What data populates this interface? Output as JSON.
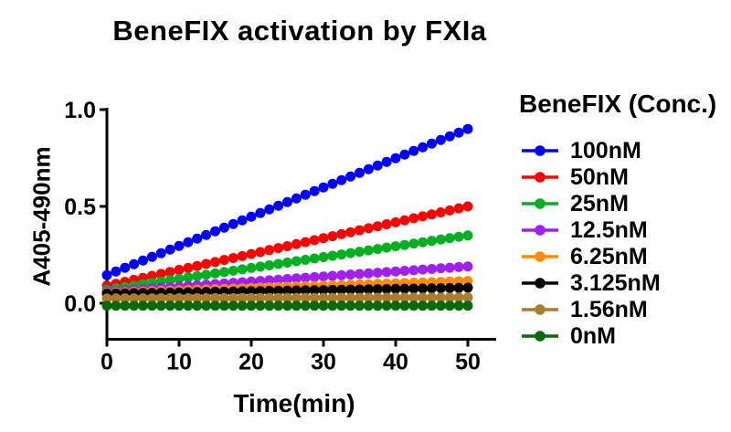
{
  "chart_data": {
    "type": "line",
    "title": "BeneFIX activation by FXIa",
    "xlabel": "Time(min)",
    "ylabel": "A405-490nm",
    "legend_title": "BeneFIX (Conc.)",
    "legend_position": "right",
    "grid": false,
    "xlim": [
      0,
      53.5
    ],
    "ylim": [
      -0.2,
      1.0
    ],
    "xticks": [
      {
        "value": 0,
        "label": "0"
      },
      {
        "value": 10,
        "label": "10"
      },
      {
        "value": 20,
        "label": "20"
      },
      {
        "value": 30,
        "label": "30"
      },
      {
        "value": 40,
        "label": "40"
      },
      {
        "value": 50,
        "label": "50"
      }
    ],
    "yticks": [
      {
        "value": 1.0,
        "label": "1.0"
      },
      {
        "value": 0.5,
        "label": "0.5"
      },
      {
        "value": 0.0,
        "label": "0.0"
      }
    ],
    "x_start": 0,
    "x_end": 50,
    "n_points": 41,
    "series": [
      {
        "name": "100nM",
        "color": "#0000ff",
        "y_start": 0.145,
        "y_end": 0.9
      },
      {
        "name": "50nM",
        "color": "#ff0000",
        "y_start": 0.09,
        "y_end": 0.5
      },
      {
        "name": "25nM",
        "color": "#00b020",
        "y_start": 0.07,
        "y_end": 0.35
      },
      {
        "name": "12.5nM",
        "color": "#a020f0",
        "y_start": 0.06,
        "y_end": 0.19
      },
      {
        "name": "6.25nM",
        "color": "#ff8c00",
        "y_start": 0.055,
        "y_end": 0.115
      },
      {
        "name": "3.125nM",
        "color": "#000000",
        "y_start": 0.05,
        "y_end": 0.08
      },
      {
        "name": "1.56nM",
        "color": "#aa7d2d",
        "y_start": 0.025,
        "y_end": 0.03
      },
      {
        "name": "0nM",
        "color": "#0a690a",
        "y_start": -0.013,
        "y_end": -0.013
      }
    ]
  }
}
